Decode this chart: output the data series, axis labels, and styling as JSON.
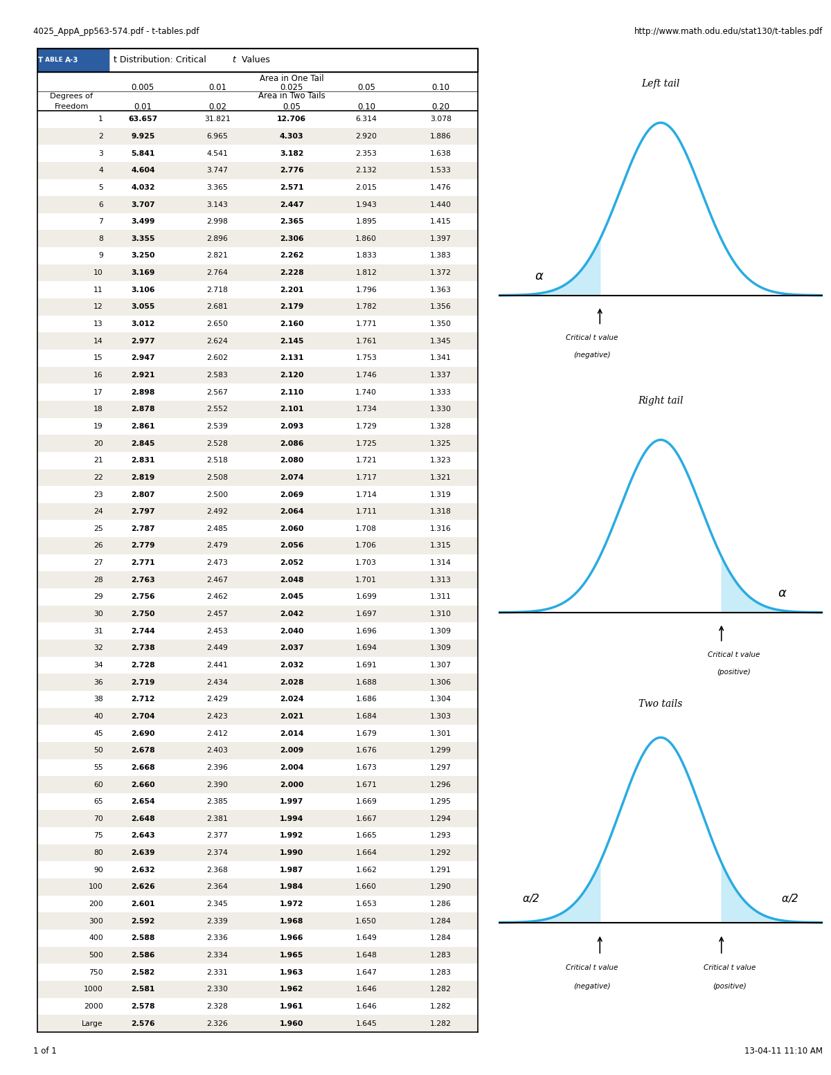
{
  "title_left": "4025_AppA_pp563-574.pdf - t-tables.pdf",
  "title_right": "http://www.math.odu.edu/stat130/t-tables.pdf",
  "table_title": "t Distribution: Critical t Values",
  "table_label": "TABLE A-3",
  "header_one_tail": "Area in One Tail",
  "header_two_tails": "Area in Two Tails",
  "col_headers_one_tail": [
    "0.005",
    "0.01",
    "0.025",
    "0.05",
    "0.10"
  ],
  "col_headers_two_tails": [
    "0.01",
    "0.02",
    "0.05",
    "0.10",
    "0.20"
  ],
  "degrees_of_freedom": [
    1,
    2,
    3,
    4,
    5,
    6,
    7,
    8,
    9,
    10,
    11,
    12,
    13,
    14,
    15,
    16,
    17,
    18,
    19,
    20,
    21,
    22,
    23,
    24,
    25,
    26,
    27,
    28,
    29,
    30,
    31,
    32,
    34,
    36,
    38,
    40,
    45,
    50,
    55,
    60,
    65,
    70,
    75,
    80,
    90,
    100,
    200,
    300,
    400,
    500,
    750,
    1000,
    2000,
    "Large"
  ],
  "data": [
    [
      63.657,
      31.821,
      12.706,
      6.314,
      3.078
    ],
    [
      9.925,
      6.965,
      4.303,
      2.92,
      1.886
    ],
    [
      5.841,
      4.541,
      3.182,
      2.353,
      1.638
    ],
    [
      4.604,
      3.747,
      2.776,
      2.132,
      1.533
    ],
    [
      4.032,
      3.365,
      2.571,
      2.015,
      1.476
    ],
    [
      3.707,
      3.143,
      2.447,
      1.943,
      1.44
    ],
    [
      3.499,
      2.998,
      2.365,
      1.895,
      1.415
    ],
    [
      3.355,
      2.896,
      2.306,
      1.86,
      1.397
    ],
    [
      3.25,
      2.821,
      2.262,
      1.833,
      1.383
    ],
    [
      3.169,
      2.764,
      2.228,
      1.812,
      1.372
    ],
    [
      3.106,
      2.718,
      2.201,
      1.796,
      1.363
    ],
    [
      3.055,
      2.681,
      2.179,
      1.782,
      1.356
    ],
    [
      3.012,
      2.65,
      2.16,
      1.771,
      1.35
    ],
    [
      2.977,
      2.624,
      2.145,
      1.761,
      1.345
    ],
    [
      2.947,
      2.602,
      2.131,
      1.753,
      1.341
    ],
    [
      2.921,
      2.583,
      2.12,
      1.746,
      1.337
    ],
    [
      2.898,
      2.567,
      2.11,
      1.74,
      1.333
    ],
    [
      2.878,
      2.552,
      2.101,
      1.734,
      1.33
    ],
    [
      2.861,
      2.539,
      2.093,
      1.729,
      1.328
    ],
    [
      2.845,
      2.528,
      2.086,
      1.725,
      1.325
    ],
    [
      2.831,
      2.518,
      2.08,
      1.721,
      1.323
    ],
    [
      2.819,
      2.508,
      2.074,
      1.717,
      1.321
    ],
    [
      2.807,
      2.5,
      2.069,
      1.714,
      1.319
    ],
    [
      2.797,
      2.492,
      2.064,
      1.711,
      1.318
    ],
    [
      2.787,
      2.485,
      2.06,
      1.708,
      1.316
    ],
    [
      2.779,
      2.479,
      2.056,
      1.706,
      1.315
    ],
    [
      2.771,
      2.473,
      2.052,
      1.703,
      1.314
    ],
    [
      2.763,
      2.467,
      2.048,
      1.701,
      1.313
    ],
    [
      2.756,
      2.462,
      2.045,
      1.699,
      1.311
    ],
    [
      2.75,
      2.457,
      2.042,
      1.697,
      1.31
    ],
    [
      2.744,
      2.453,
      2.04,
      1.696,
      1.309
    ],
    [
      2.738,
      2.449,
      2.037,
      1.694,
      1.309
    ],
    [
      2.728,
      2.441,
      2.032,
      1.691,
      1.307
    ],
    [
      2.719,
      2.434,
      2.028,
      1.688,
      1.306
    ],
    [
      2.712,
      2.429,
      2.024,
      1.686,
      1.304
    ],
    [
      2.704,
      2.423,
      2.021,
      1.684,
      1.303
    ],
    [
      2.69,
      2.412,
      2.014,
      1.679,
      1.301
    ],
    [
      2.678,
      2.403,
      2.009,
      1.676,
      1.299
    ],
    [
      2.668,
      2.396,
      2.004,
      1.673,
      1.297
    ],
    [
      2.66,
      2.39,
      2.0,
      1.671,
      1.296
    ],
    [
      2.654,
      2.385,
      1.997,
      1.669,
      1.295
    ],
    [
      2.648,
      2.381,
      1.994,
      1.667,
      1.294
    ],
    [
      2.643,
      2.377,
      1.992,
      1.665,
      1.293
    ],
    [
      2.639,
      2.374,
      1.99,
      1.664,
      1.292
    ],
    [
      2.632,
      2.368,
      1.987,
      1.662,
      1.291
    ],
    [
      2.626,
      2.364,
      1.984,
      1.66,
      1.29
    ],
    [
      2.601,
      2.345,
      1.972,
      1.653,
      1.286
    ],
    [
      2.592,
      2.339,
      1.968,
      1.65,
      1.284
    ],
    [
      2.588,
      2.336,
      1.966,
      1.649,
      1.284
    ],
    [
      2.586,
      2.334,
      1.965,
      1.648,
      1.283
    ],
    [
      2.582,
      2.331,
      1.963,
      1.647,
      1.283
    ],
    [
      2.581,
      2.33,
      1.962,
      1.646,
      1.282
    ],
    [
      2.578,
      2.328,
      1.961,
      1.646,
      1.282
    ],
    [
      2.576,
      2.326,
      1.96,
      1.645,
      1.282
    ]
  ],
  "bold_cols": [
    0,
    2
  ],
  "bg_color_odd": "#f0ede6",
  "bg_color_even": "#ffffff",
  "table_header_bg": "#2b5da0",
  "table_header_text": "#ffffff",
  "curve_color": "#29abe2",
  "fill_color": "#c8ecf8",
  "page_bg": "#ffffff",
  "left_margin_bg": "#cfe2f0",
  "footer_left": "1 of 1",
  "footer_right": "13-04-11 11:10 AM"
}
